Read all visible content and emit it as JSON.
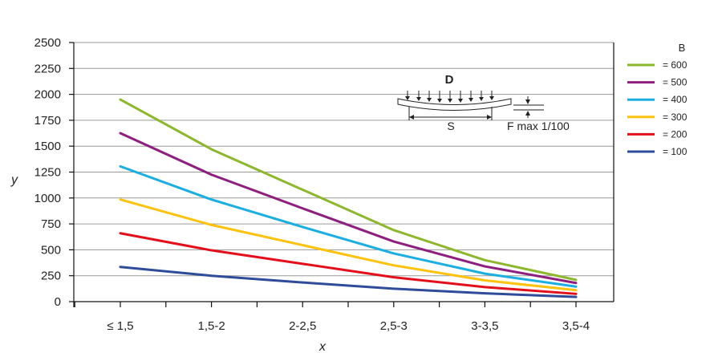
{
  "chart_data": {
    "type": "line",
    "title": "",
    "xlabel": "x",
    "ylabel": "y",
    "categories": [
      "≤ 1,5",
      "1,5-2",
      "2-2,5",
      "2,5-3",
      "3-3,5",
      "3,5-4"
    ],
    "ylim": [
      0,
      2500
    ],
    "yticks": [
      0,
      250,
      500,
      750,
      1000,
      1250,
      1500,
      1750,
      2000,
      2250,
      2500
    ],
    "grid": true,
    "legend": {
      "title": "B",
      "placement": "right"
    },
    "series": [
      {
        "name": "= 600",
        "color": "#8DB82E",
        "values": [
          1950,
          1470,
          1080,
          690,
          400,
          210
        ]
      },
      {
        "name": "= 500",
        "color": "#8E1F7E",
        "values": [
          1625,
          1225,
          900,
          580,
          340,
          180
        ]
      },
      {
        "name": "= 400",
        "color": "#1BAEE0",
        "values": [
          1305,
          985,
          720,
          465,
          270,
          145
        ]
      },
      {
        "name": "= 300",
        "color": "#FFC20E",
        "values": [
          985,
          740,
          545,
          350,
          205,
          110
        ]
      },
      {
        "name": "= 200",
        "color": "#E3101C",
        "values": [
          660,
          495,
          365,
          235,
          140,
          75
        ]
      },
      {
        "name": "= 100",
        "color": "#2E4C9A",
        "values": [
          335,
          250,
          185,
          125,
          80,
          45
        ]
      }
    ],
    "annotation": {
      "title": "D",
      "span_label": "S",
      "deflection_label": "F max 1/100"
    }
  }
}
